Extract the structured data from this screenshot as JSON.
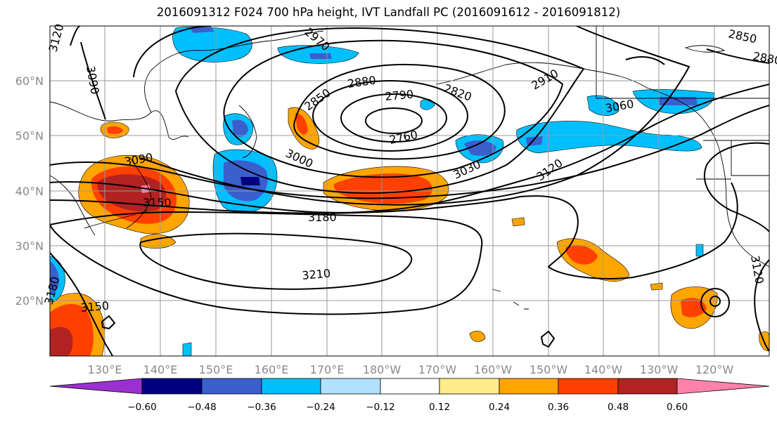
{
  "title": "2016091312 F024 700 hPa height, IVT Landfall PC (2016091612 - 2016091812)",
  "lat_labels": [
    "60°N",
    "50°N",
    "40°N",
    "30°N",
    "20°N"
  ],
  "lon_labels": [
    "130°E",
    "140°E",
    "150°E",
    "160°E",
    "170°E",
    "180°W",
    "170°W",
    "160°W",
    "150°W",
    "140°W",
    "130°W",
    "120°W"
  ],
  "colorbar": {
    "ticks": [
      "−0.60",
      "−0.48",
      "−0.36",
      "−0.24",
      "−0.12",
      "0.12",
      "0.24",
      "0.36",
      "0.48",
      "0.60"
    ],
    "colors": [
      "#9b30d0",
      "#000080",
      "#3a5fcd",
      "#00bfff",
      "#b0e2ff",
      "#ffffff",
      "#ffec8b",
      "#ffa500",
      "#ff4000",
      "#b22222",
      "#ff82ab"
    ]
  },
  "contour_labels": [
    "3120",
    "3090",
    "2970",
    "2850",
    "2880",
    "2790",
    "2820",
    "2910",
    "2760",
    "3060",
    "3000",
    "3030",
    "3120",
    "3090",
    "3150",
    "3180",
    "3210",
    "3150",
    "3180",
    "3120",
    "2850",
    "2880"
  ]
}
